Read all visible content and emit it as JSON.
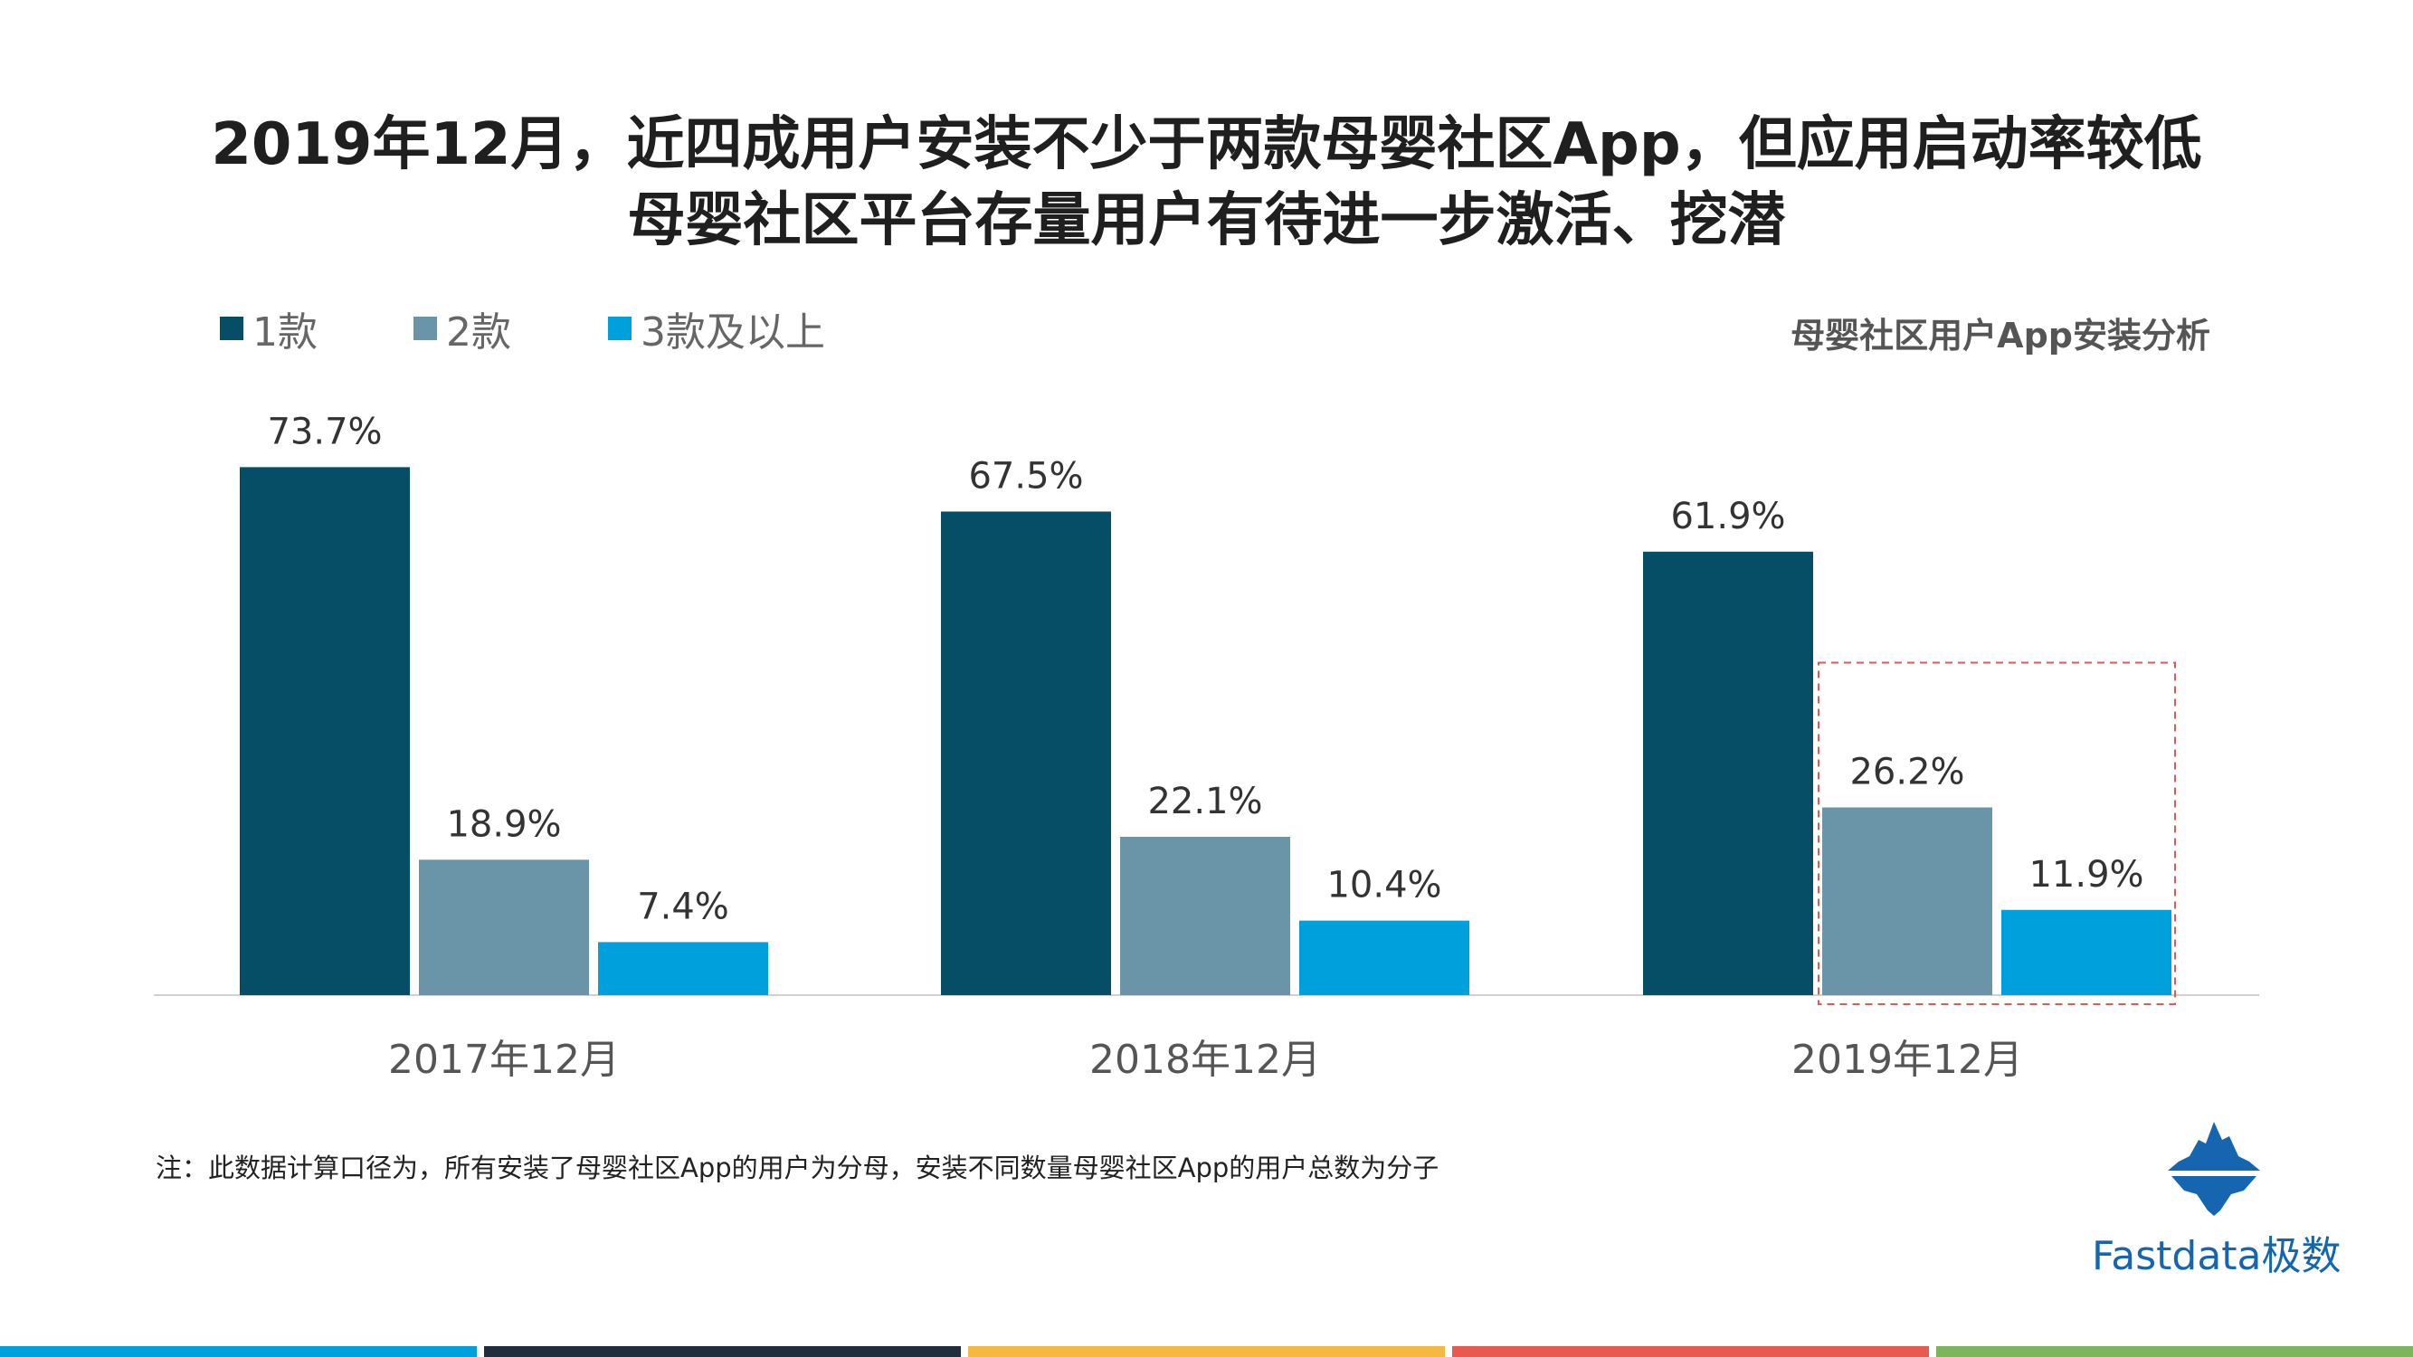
{
  "title": {
    "line1": "2019年12月，近四成用户安装不少于两款母婴社区App，但应用启动率较低",
    "line2": "母婴社区平台存量用户有待进一步激活、挖潜"
  },
  "subtitle": "母婴社区用户App安装分析",
  "legend": [
    {
      "label": "1款",
      "color": "#054e66"
    },
    {
      "label": "2款",
      "color": "#6a95a8"
    },
    {
      "label": "3款及以上",
      "color": "#00a0dc"
    }
  ],
  "chart_data": {
    "type": "bar",
    "categories": [
      "2017年12月",
      "2018年12月",
      "2019年12月"
    ],
    "series": [
      {
        "name": "1款",
        "values": [
          73.7,
          67.5,
          61.9
        ],
        "labels": [
          "73.7%",
          "67.5%",
          "61.9%"
        ],
        "color": "#054e66"
      },
      {
        "name": "2款",
        "values": [
          18.9,
          22.1,
          26.2
        ],
        "labels": [
          "18.9%",
          "22.1%",
          "26.2%"
        ],
        "color": "#6a95a8"
      },
      {
        "name": "3款及以上",
        "values": [
          7.4,
          10.4,
          11.9
        ],
        "labels": [
          "7.4%",
          "10.4%",
          "11.9%"
        ],
        "color": "#00a0dc"
      }
    ],
    "ylim": [
      0,
      100
    ],
    "grid": false,
    "legend_position": "top-left",
    "highlight": {
      "category": "2019年12月",
      "series": [
        "2款",
        "3款及以上"
      ],
      "style": "dashed",
      "color": "#e05a50"
    }
  },
  "note": "注：此数据计算口径为，所有安装了母婴社区App的用户为分母，安装不同数量母婴社区App的用户总数为分子",
  "brand": {
    "text": "Fastdata极数",
    "icon": "iceberg-icon",
    "color": "#1565b0"
  },
  "footer_colors": [
    "#00a0dc",
    "#1f2d3d",
    "#f5b841",
    "#e85a4f",
    "#7cb55b"
  ]
}
